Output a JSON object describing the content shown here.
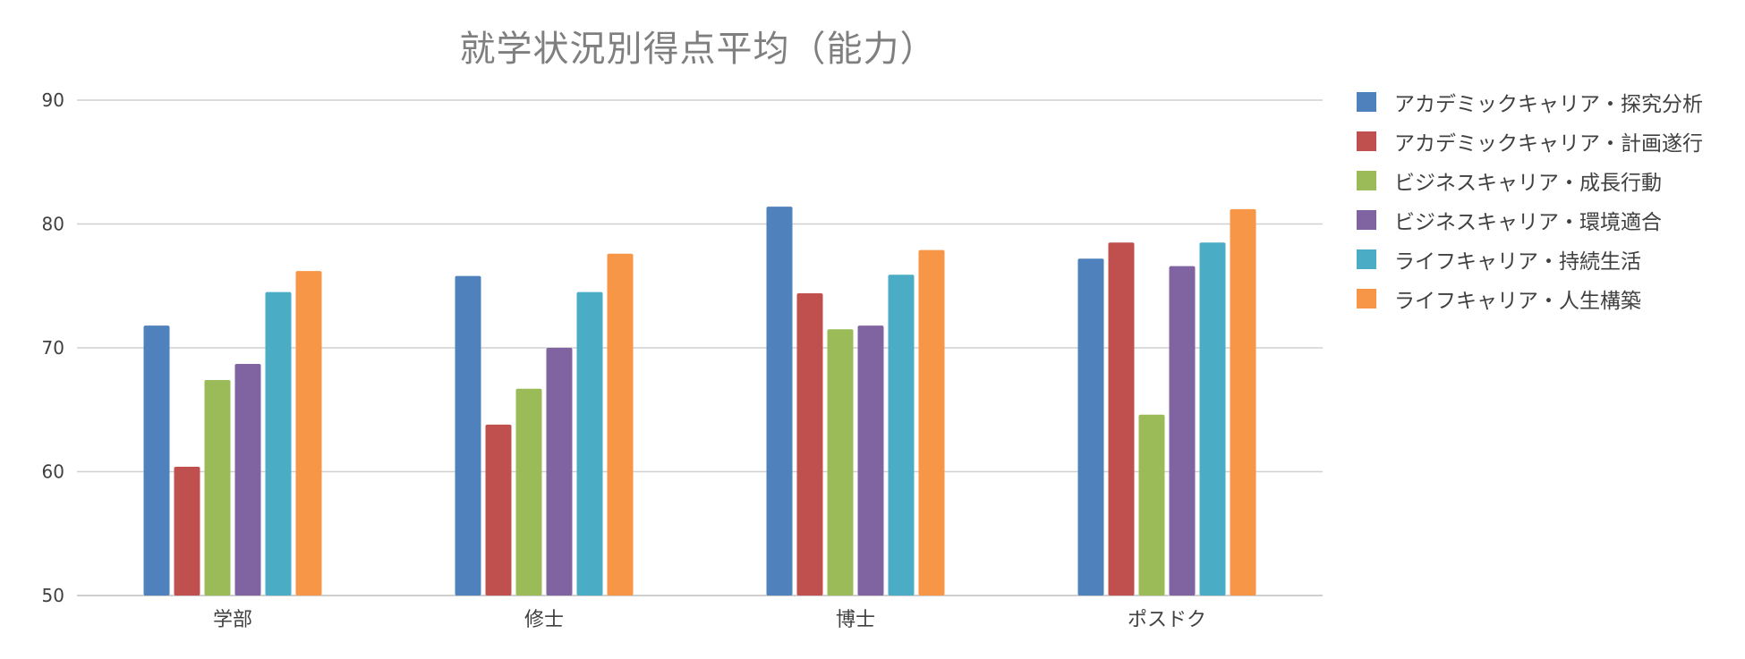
{
  "chart_data": {
    "type": "bar",
    "title": "就学状況別得点平均（能力）",
    "xlabel": "",
    "ylabel": "",
    "ylim": [
      50,
      90
    ],
    "yticks": [
      50,
      60,
      70,
      80,
      90
    ],
    "grid": true,
    "legend_position": "right",
    "categories": [
      "学部",
      "修士",
      "博士",
      "ポスドク"
    ],
    "series": [
      {
        "name": "アカデミックキャリア・探究分析",
        "color": "#4f81bd",
        "values": [
          71.8,
          75.8,
          81.4,
          77.2
        ]
      },
      {
        "name": "アカデミックキャリア・計画遂行",
        "color": "#c0504d",
        "values": [
          60.4,
          63.8,
          74.4,
          78.5
        ]
      },
      {
        "name": "ビジネスキャリア・成長行動",
        "color": "#9bbb59",
        "values": [
          67.4,
          66.7,
          71.5,
          64.6
        ]
      },
      {
        "name": "ビジネスキャリア・環境適合",
        "color": "#8064a2",
        "values": [
          68.7,
          70.0,
          71.8,
          76.6
        ]
      },
      {
        "name": "ライフキャリア・持続生活",
        "color": "#4bacc6",
        "values": [
          74.5,
          74.5,
          75.9,
          78.5
        ]
      },
      {
        "name": "ライフキャリア・人生構築",
        "color": "#f79646",
        "values": [
          76.2,
          77.6,
          77.9,
          81.2
        ]
      }
    ]
  }
}
